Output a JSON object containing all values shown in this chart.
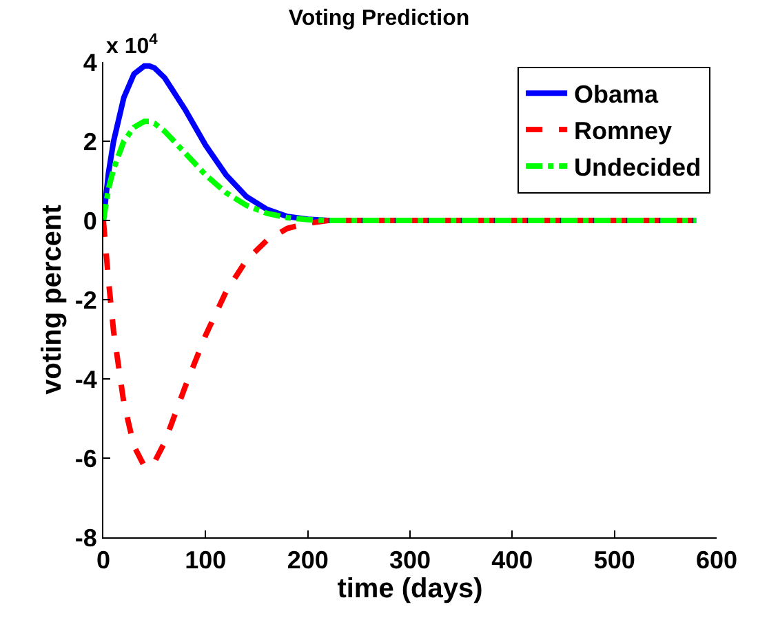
{
  "chart_data": {
    "type": "line",
    "title": "Voting Prediction",
    "xlabel": "time (days)",
    "ylabel": "voting percent",
    "annotations": [
      "x 10$^{4}$"
    ],
    "xlim": [
      0,
      600
    ],
    "xticks": [
      0,
      100,
      200,
      300,
      400,
      500,
      600
    ],
    "ylim": [
      -8,
      4
    ],
    "yticks": [
      -8,
      -6,
      -4,
      -2,
      0,
      2,
      4
    ],
    "x": [
      0,
      5,
      10,
      20,
      30,
      40,
      45,
      50,
      60,
      80,
      100,
      120,
      140,
      160,
      180,
      200,
      220,
      250,
      300,
      400,
      500,
      580
    ],
    "series": [
      {
        "name": "Obama",
        "color": "#0000ff",
        "line_style": "solid",
        "values": [
          0,
          1.2,
          2.0,
          3.1,
          3.7,
          3.9,
          3.9,
          3.85,
          3.6,
          2.8,
          1.9,
          1.15,
          0.6,
          0.28,
          0.1,
          0.03,
          0,
          0,
          0,
          0,
          0,
          0
        ]
      },
      {
        "name": "Romney",
        "color": "#ff0000",
        "line_style": "dashed",
        "values": [
          0,
          -1.5,
          -2.8,
          -4.6,
          -5.7,
          -6.2,
          -6.2,
          -6.1,
          -5.6,
          -4.2,
          -2.9,
          -1.8,
          -1.0,
          -0.5,
          -0.2,
          -0.07,
          0,
          0,
          0,
          0,
          0,
          0
        ]
      },
      {
        "name": "Undecided",
        "color": "#00ff00",
        "line_style": "dashdot",
        "values": [
          0,
          0.8,
          1.3,
          2.0,
          2.35,
          2.5,
          2.5,
          2.45,
          2.25,
          1.7,
          1.15,
          0.7,
          0.38,
          0.18,
          0.07,
          0.02,
          0,
          0,
          0,
          0,
          0,
          0
        ]
      }
    ],
    "legend": "top right",
    "marker": "none"
  }
}
